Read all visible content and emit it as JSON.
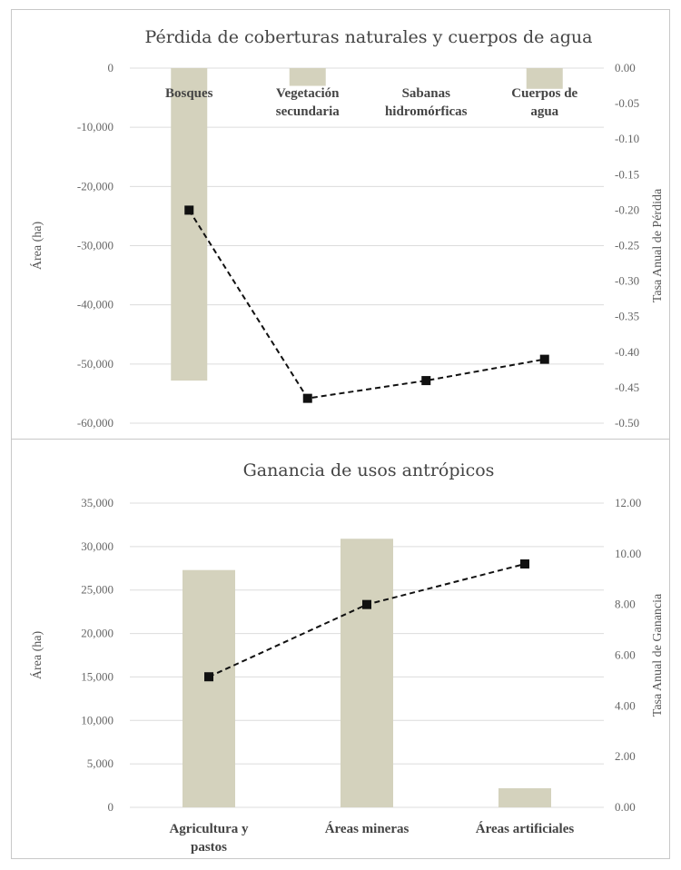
{
  "chart_data": [
    {
      "type": "bar",
      "title": "Pérdida de coberturas naturales y cuerpos de agua",
      "categories": [
        "Bosques",
        "Vegetación secundaria",
        "Sabanas hidromórficas",
        "Cuerpos de agua"
      ],
      "category_lines": [
        [
          "Bosques"
        ],
        [
          "Vegetación",
          "secundaria"
        ],
        [
          "Sabanas",
          "hidromórficas"
        ],
        [
          "Cuerpos de",
          "agua"
        ]
      ],
      "ylabel": "Área (ha)",
      "y2label": "Tasa Anual de Pérdida",
      "ylim": [
        -60000,
        0
      ],
      "y_ticks": [
        0,
        -10000,
        -20000,
        -30000,
        -40000,
        -50000,
        -60000
      ],
      "y_tick_labels": [
        "0",
        "-10,000",
        "-20,000",
        "-30,000",
        "-40,000",
        "-50,000",
        "-60,000"
      ],
      "y2lim": [
        -0.5,
        0
      ],
      "y2_ticks": [
        0,
        -0.05,
        -0.1,
        -0.15,
        -0.2,
        -0.25,
        -0.3,
        -0.35,
        -0.4,
        -0.45,
        -0.5
      ],
      "y2_tick_labels": [
        "0.00",
        "-0.05",
        "-0.10",
        "-0.15",
        "-0.20",
        "-0.25",
        "-0.30",
        "-0.35",
        "-0.40",
        "-0.45",
        "-0.50"
      ],
      "series": [
        {
          "kind": "bar",
          "axis": "left",
          "values": [
            -52800,
            -3000,
            0,
            -3500
          ],
          "color": "#d4d2bd"
        },
        {
          "kind": "line",
          "axis": "right",
          "values": [
            -0.2,
            -0.465,
            -0.44,
            -0.41
          ],
          "color": "#111111",
          "dash": true
        }
      ],
      "grid": true,
      "legend": "none"
    },
    {
      "type": "bar",
      "title": "Ganancia de usos antrópicos",
      "categories": [
        "Agricultura y pastos",
        "Áreas mineras",
        "Áreas artificiales"
      ],
      "category_lines": [
        [
          "Agricultura y",
          "pastos"
        ],
        [
          "Áreas mineras"
        ],
        [
          "Áreas artificiales"
        ]
      ],
      "ylabel": "Área (ha)",
      "y2label": "Tasa Anual de Ganancia",
      "ylim": [
        0,
        35000
      ],
      "y_ticks": [
        0,
        5000,
        10000,
        15000,
        20000,
        25000,
        30000,
        35000
      ],
      "y_tick_labels": [
        "0",
        "5,000",
        "10,000",
        "15,000",
        "20,000",
        "25,000",
        "30,000",
        "35,000"
      ],
      "y2lim": [
        0,
        12
      ],
      "y2_ticks": [
        0,
        2,
        4,
        6,
        8,
        10,
        12
      ],
      "y2_tick_labels": [
        "0.00",
        "2.00",
        "4.00",
        "6.00",
        "8.00",
        "10.00",
        "12.00"
      ],
      "series": [
        {
          "kind": "bar",
          "axis": "left",
          "values": [
            27300,
            30900,
            2200
          ],
          "color": "#d4d2bd"
        },
        {
          "kind": "line",
          "axis": "right",
          "values": [
            5.15,
            8.0,
            9.6
          ],
          "color": "#111111",
          "dash": true
        }
      ],
      "grid": true,
      "legend": "none"
    }
  ]
}
